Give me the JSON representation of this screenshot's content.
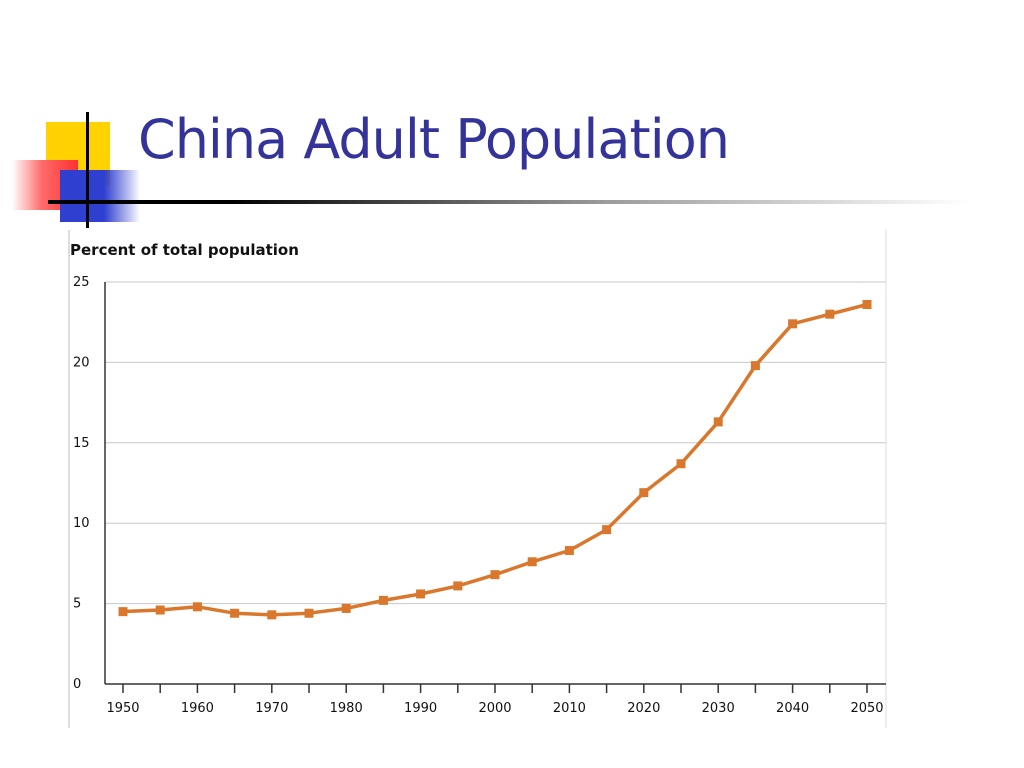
{
  "slide": {
    "title": "China Adult Population"
  },
  "colors": {
    "title": "#333399",
    "series": "#d9782d",
    "grid": "#c8c8c8"
  },
  "chart_data": {
    "type": "line",
    "title": "",
    "ylabel": "Percent of total population",
    "xlabel": "",
    "ylim": [
      0,
      25
    ],
    "xlim": [
      1950,
      2050
    ],
    "yticks": [
      0,
      5,
      10,
      15,
      20,
      25
    ],
    "xticks_labeled": [
      1950,
      1960,
      1970,
      1980,
      1990,
      2000,
      2010,
      2020,
      2030,
      2040,
      2050
    ],
    "xticks_minor": [
      1955,
      1965,
      1975,
      1985,
      1995,
      2005,
      2015,
      2025,
      2035,
      2045
    ],
    "grid": true,
    "legend": "none",
    "marker": "square",
    "x": [
      1950,
      1955,
      1960,
      1965,
      1970,
      1975,
      1980,
      1985,
      1990,
      1995,
      2000,
      2005,
      2010,
      2015,
      2020,
      2025,
      2030,
      2035,
      2040,
      2045,
      2050
    ],
    "series": [
      {
        "values": [
          4.5,
          4.6,
          4.8,
          4.4,
          4.3,
          4.4,
          4.7,
          5.2,
          5.6,
          6.1,
          6.8,
          7.6,
          8.3,
          9.6,
          11.9,
          13.7,
          16.3,
          19.8,
          22.4,
          23.0,
          23.6
        ]
      }
    ]
  }
}
